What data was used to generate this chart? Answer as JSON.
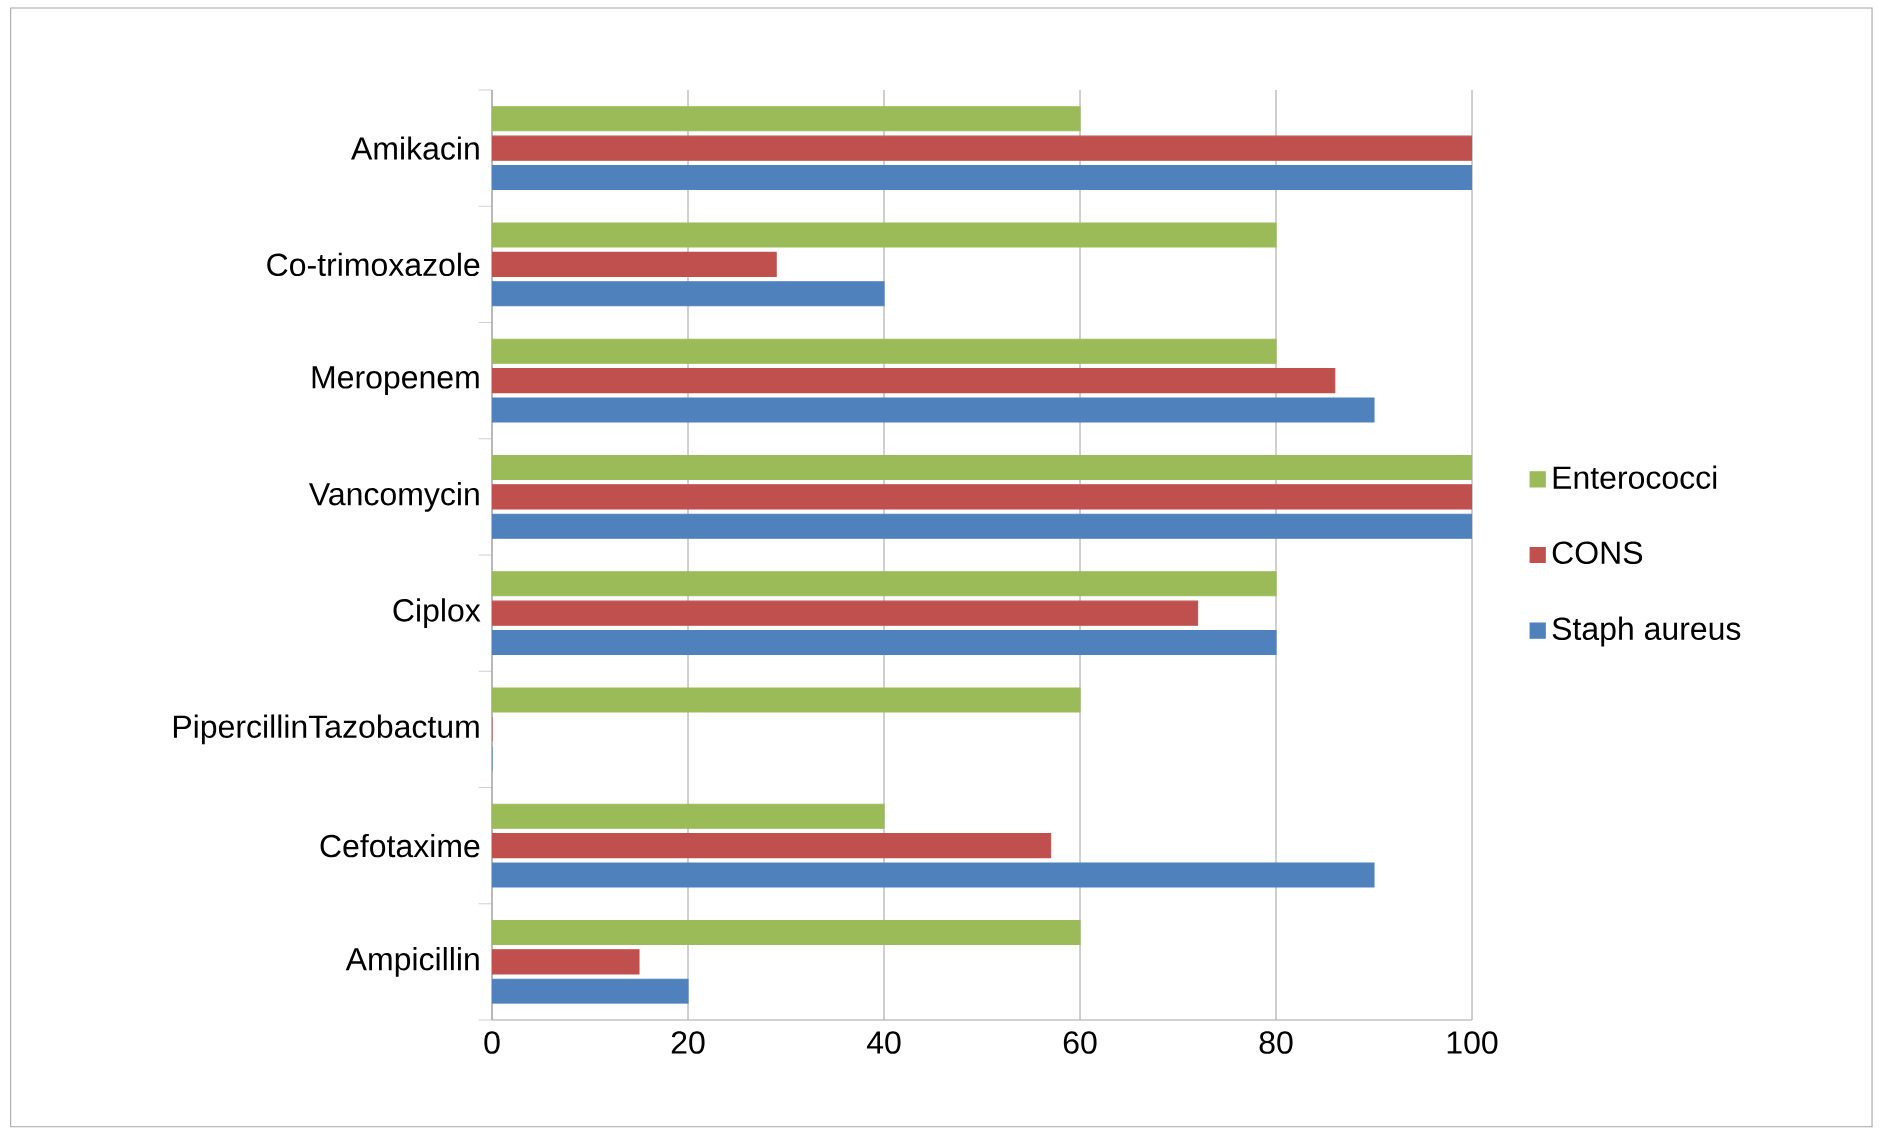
{
  "chart_data": {
    "type": "bar",
    "orientation": "horizontal",
    "categories": [
      "Amikacin",
      "Co-trimoxazole",
      "Meropenem",
      "Vancomycin",
      "Ciplox",
      "PipercillinTazobactum",
      "Cefotaxime",
      "Ampicillin"
    ],
    "series": [
      {
        "name": "Staph aureus",
        "color": "#4f81bd",
        "values": [
          100,
          40,
          90,
          100,
          80,
          0,
          90,
          20
        ]
      },
      {
        "name": "CONS",
        "color": "#c0504d",
        "values": [
          100,
          29,
          86,
          100,
          72,
          0,
          57,
          15
        ]
      },
      {
        "name": "Enterococci",
        "color": "#9bbb59",
        "values": [
          60,
          80,
          80,
          100,
          80,
          60,
          40,
          60
        ]
      }
    ],
    "xlim": [
      0,
      100
    ],
    "xticks": [
      0,
      20,
      40,
      60,
      80,
      100
    ],
    "grid": "x",
    "legend": "right"
  }
}
